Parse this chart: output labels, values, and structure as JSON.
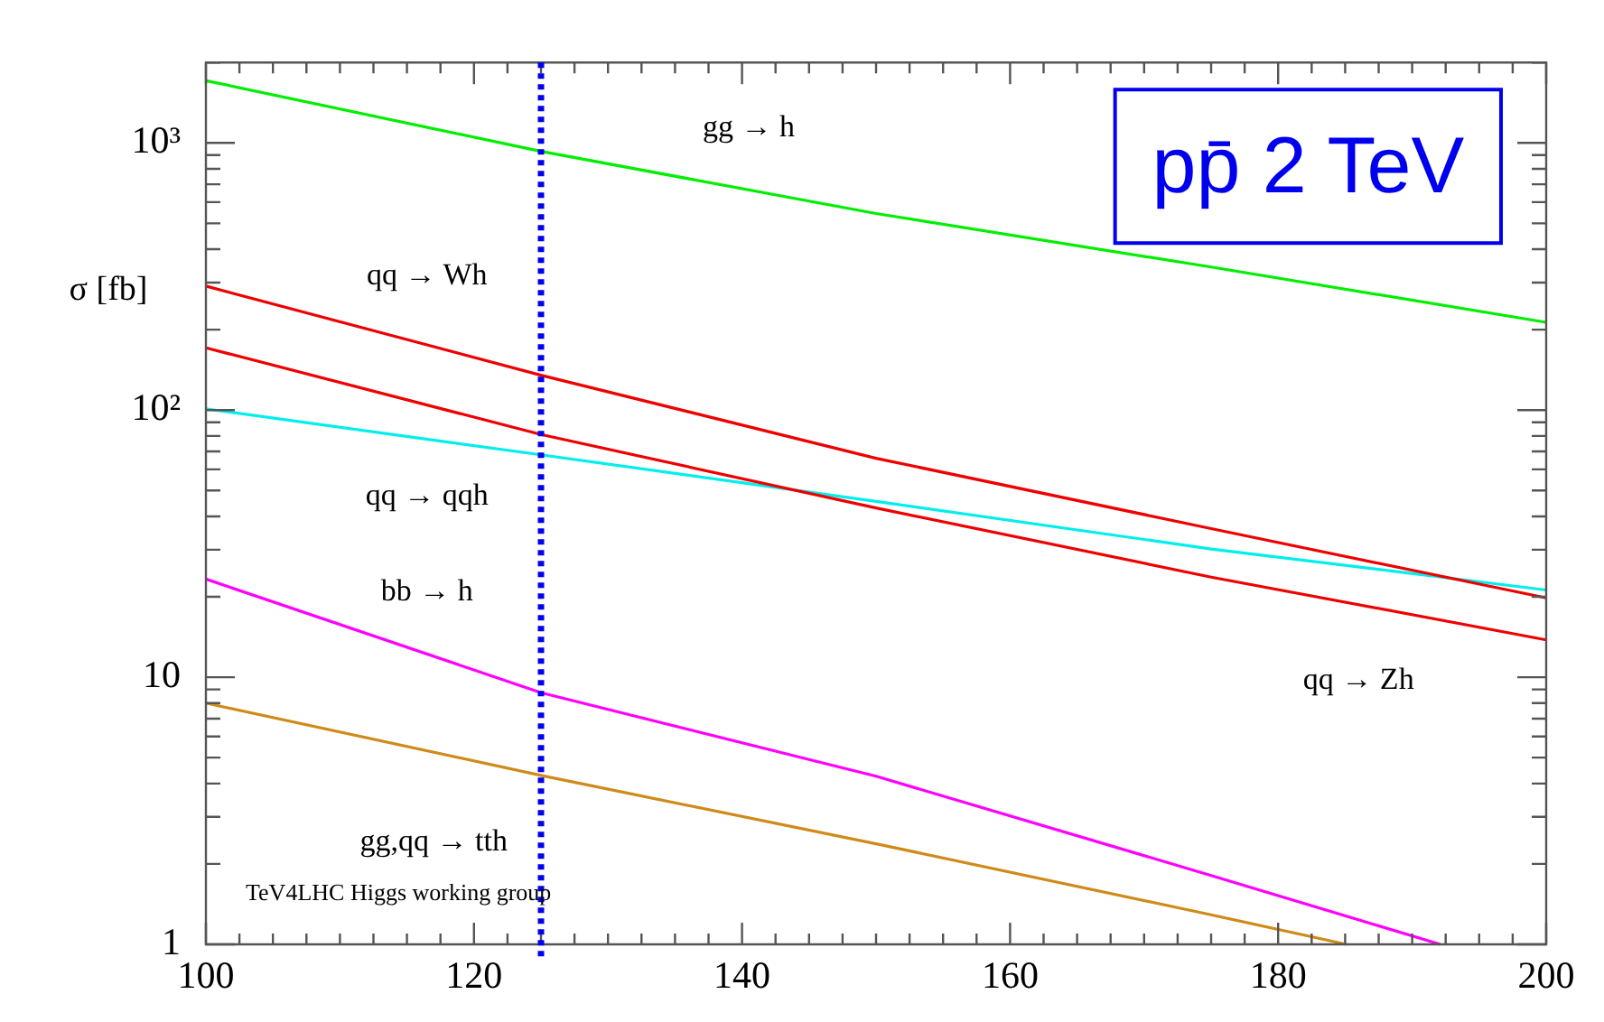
{
  "chart_data": {
    "type": "line",
    "title": "pp̄ 2 TeV",
    "ylabel": "σ [fb]",
    "annotations": [
      "TeV4LHC Higgs working group"
    ],
    "log": "y",
    "grid": false,
    "legend": false,
    "marker": "none",
    "line_style": "solid",
    "xlim": [
      100,
      200
    ],
    "ylim": [
      1,
      2000
    ],
    "xticks": [
      100,
      {
        "value": 102.5,
        "label": null
      },
      {
        "value": 105,
        "label": null
      },
      {
        "value": 107.5,
        "label": null
      },
      {
        "value": 110,
        "label": null
      },
      {
        "value": 112.5,
        "label": null
      },
      {
        "value": 115,
        "label": null
      },
      {
        "value": 117.5,
        "label": null
      },
      120,
      {
        "value": 122.5,
        "label": null
      },
      {
        "value": 125,
        "label": null
      },
      {
        "value": 127.5,
        "label": null
      },
      {
        "value": 130,
        "label": null
      },
      {
        "value": 132.5,
        "label": null
      },
      {
        "value": 135,
        "label": null
      },
      {
        "value": 137.5,
        "label": null
      },
      140,
      {
        "value": 142.5,
        "label": null
      },
      {
        "value": 145,
        "label": null
      },
      {
        "value": 147.5,
        "label": null
      },
      {
        "value": 150,
        "label": null
      },
      {
        "value": 152.5,
        "label": null
      },
      {
        "value": 155,
        "label": null
      },
      {
        "value": 157.5,
        "label": null
      },
      160,
      {
        "value": 162.5,
        "label": null
      },
      {
        "value": 165,
        "label": null
      },
      {
        "value": 167.5,
        "label": null
      },
      {
        "value": 170,
        "label": null
      },
      {
        "value": 172.5,
        "label": null
      },
      {
        "value": 175,
        "label": null
      },
      {
        "value": 177.5,
        "label": null
      },
      180,
      {
        "value": 182.5,
        "label": null
      },
      {
        "value": 185,
        "label": null
      },
      {
        "value": 187.5,
        "label": null
      },
      {
        "value": 190,
        "label": null
      },
      {
        "value": 192.5,
        "label": null
      },
      {
        "value": 195,
        "label": null
      },
      {
        "value": 197.5,
        "label": null
      },
      200
    ],
    "yticks": [
      1,
      {
        "value": 2,
        "label": null
      },
      {
        "value": 3,
        "label": null
      },
      {
        "value": 4,
        "label": null
      },
      {
        "value": 5,
        "label": null
      },
      {
        "value": 6,
        "label": null
      },
      {
        "value": 7,
        "label": null
      },
      {
        "value": 8,
        "label": null
      },
      {
        "value": 9,
        "label": null
      },
      10,
      {
        "value": 20,
        "label": null
      },
      {
        "value": 30,
        "label": null
      },
      {
        "value": 40,
        "label": null
      },
      {
        "value": 50,
        "label": null
      },
      {
        "value": 60,
        "label": null
      },
      {
        "value": 70,
        "label": null
      },
      {
        "value": 80,
        "label": null
      },
      {
        "value": 90,
        "label": null
      },
      {
        "value": 100,
        "label": "10²"
      },
      {
        "value": 200,
        "label": null
      },
      {
        "value": 300,
        "label": null
      },
      {
        "value": 400,
        "label": null
      },
      {
        "value": 500,
        "label": null
      },
      {
        "value": 600,
        "label": null
      },
      {
        "value": 700,
        "label": null
      },
      {
        "value": 800,
        "label": null
      },
      {
        "value": 900,
        "label": null
      },
      {
        "value": 1000,
        "label": "10³"
      },
      {
        "value": 2000,
        "label": null
      }
    ],
    "ref_lines": [
      {
        "axis": "x",
        "value": 125,
        "color": "#0000ee",
        "line_style": "dotted"
      }
    ],
    "series": [
      {
        "name": "gg → h",
        "color": "#00ee00",
        "x": [
          100,
          125,
          150,
          175,
          200
        ],
        "values": [
          1710,
          930,
          544,
          343,
          213
        ]
      },
      {
        "name": "qq → Wh",
        "color": "#ee0000",
        "x": [
          100,
          125,
          150,
          175,
          200
        ],
        "values": [
          291,
          135,
          66,
          36,
          19.8
        ]
      },
      {
        "name": "qq → Zh",
        "color": "#ee0000",
        "x": [
          100,
          125,
          150,
          175,
          200
        ],
        "values": [
          171,
          81,
          43,
          23.7,
          13.8
        ]
      },
      {
        "name": "qq → qqh",
        "color": "#00eeee",
        "x": [
          100,
          125,
          150,
          175,
          200
        ],
        "values": [
          101,
          68,
          45.5,
          30.2,
          21.2
        ]
      },
      {
        "name": "bb → h",
        "color": "#ff00ff",
        "x": [
          100,
          125,
          150,
          175,
          192.1
        ],
        "values": [
          23.3,
          8.75,
          4.26,
          1.81,
          1
        ]
      },
      {
        "name": "gg,qq → tth",
        "color": "#d08a1a",
        "x": [
          100,
          125,
          150,
          175,
          185.1
        ],
        "values": [
          8.0,
          4.29,
          2.38,
          1.29,
          1
        ]
      }
    ]
  }
}
